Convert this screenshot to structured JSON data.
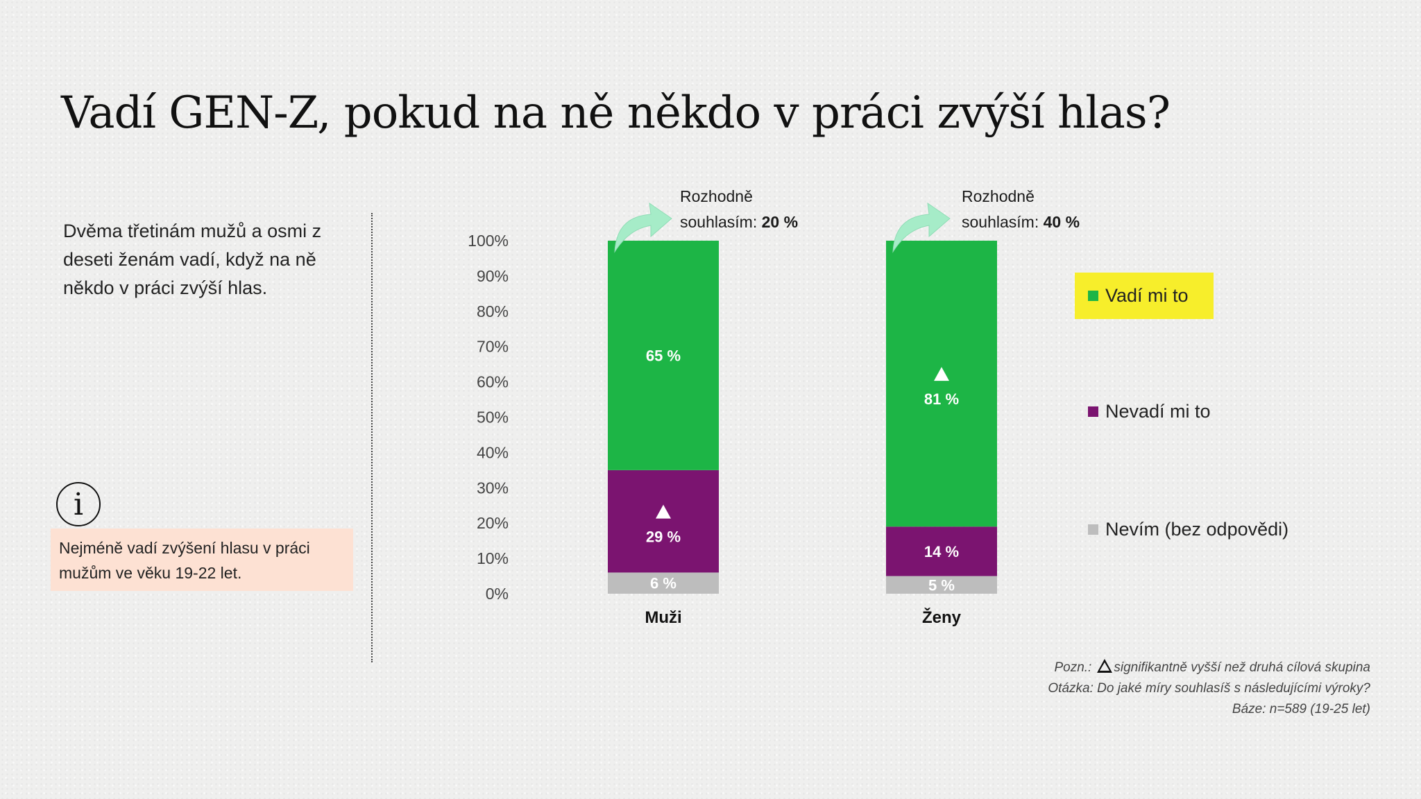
{
  "title": "Vadí GEN-Z, pokud na ně někdo v práci zvýší hlas?",
  "intro": "Dvěma třetinám mužů a osmi z deseti ženám vadí, když na ně někdo v práci zvýší hlas.",
  "info_box": "Nejméně vadí zvýšení hlasu v práci mužům ve věku 19-22 let.",
  "info_icon": "info-icon",
  "notes": {
    "pozn_label": "Pozn.:",
    "pozn_text": "signifikantně vyšší než druhá cílová skupina",
    "question": "Otázka: Do jaké míry souhlasíš s následujícími výroky?",
    "base": "Báze: n=589 (19-25 let)"
  },
  "chart_data": {
    "type": "bar",
    "stacked": true,
    "categories": [
      "Muži",
      "Ženy"
    ],
    "series": [
      {
        "name": "Nevím (bez odpovědi)",
        "color": "#bdbdbd",
        "values": [
          6,
          5
        ],
        "labels": [
          "6 %",
          "5 %"
        ],
        "significant": [
          false,
          false
        ]
      },
      {
        "name": "Nevadí mi to",
        "color": "#7b1470",
        "values": [
          29,
          14
        ],
        "labels": [
          "29 %",
          "14 %"
        ],
        "significant": [
          true,
          false
        ]
      },
      {
        "name": "Vadí mi to",
        "color": "#1db546",
        "values": [
          65,
          81
        ],
        "labels": [
          "65 %",
          "81 %"
        ],
        "significant": [
          false,
          true
        ]
      }
    ],
    "ylim": [
      0,
      100
    ],
    "yticks": [
      0,
      10,
      20,
      30,
      40,
      50,
      60,
      70,
      80,
      90,
      100
    ],
    "ytick_labels": [
      "0%",
      "10%",
      "20%",
      "30%",
      "40%",
      "50%",
      "60%",
      "70%",
      "80%",
      "90%",
      "100%"
    ],
    "legend": [
      "Vadí mi to",
      "Nevadí mi to",
      "Nevím (bez odpovědi)"
    ],
    "legend_position": "right",
    "legend_highlight": "Vadí mi to",
    "grid": false,
    "callouts": [
      {
        "line1": "Rozhodně",
        "line2": "souhlasím:",
        "value": "20 %"
      },
      {
        "line1": "Rozhodně",
        "line2": "souhlasím:",
        "value": "40 %"
      }
    ]
  }
}
